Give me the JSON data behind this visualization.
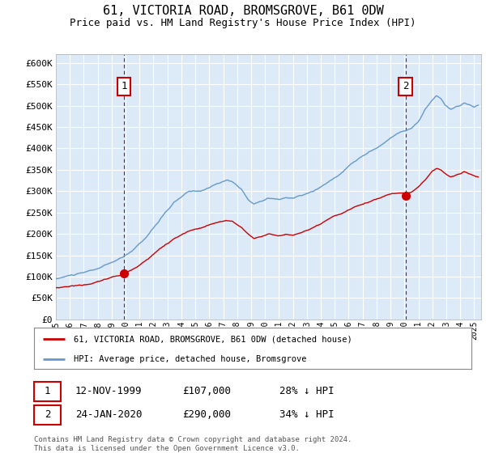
{
  "title1": "61, VICTORIA ROAD, BROMSGROVE, B61 0DW",
  "title2": "Price paid vs. HM Land Registry's House Price Index (HPI)",
  "ylabel_ticks": [
    "£0",
    "£50K",
    "£100K",
    "£150K",
    "£200K",
    "£250K",
    "£300K",
    "£350K",
    "£400K",
    "£450K",
    "£500K",
    "£550K",
    "£600K"
  ],
  "ylim": [
    0,
    620000
  ],
  "xlim_start": 1995.0,
  "xlim_end": 2025.5,
  "plot_bg": "#dce9f7",
  "grid_color": "#ffffff",
  "sale1_x": 1999.87,
  "sale1_y": 107000,
  "sale2_x": 2020.07,
  "sale2_y": 290000,
  "legend_line1": "61, VICTORIA ROAD, BROMSGROVE, B61 0DW (detached house)",
  "legend_line2": "HPI: Average price, detached house, Bromsgrove",
  "sale1_label": "1",
  "sale1_date": "12-NOV-1999",
  "sale1_price": "£107,000",
  "sale1_hpi": "28% ↓ HPI",
  "sale2_label": "2",
  "sale2_date": "24-JAN-2020",
  "sale2_price": "£290,000",
  "sale2_hpi": "34% ↓ HPI",
  "footer": "Contains HM Land Registry data © Crown copyright and database right 2024.\nThis data is licensed under the Open Government Licence v3.0.",
  "red_color": "#cc0000",
  "blue_color": "#6699cc"
}
